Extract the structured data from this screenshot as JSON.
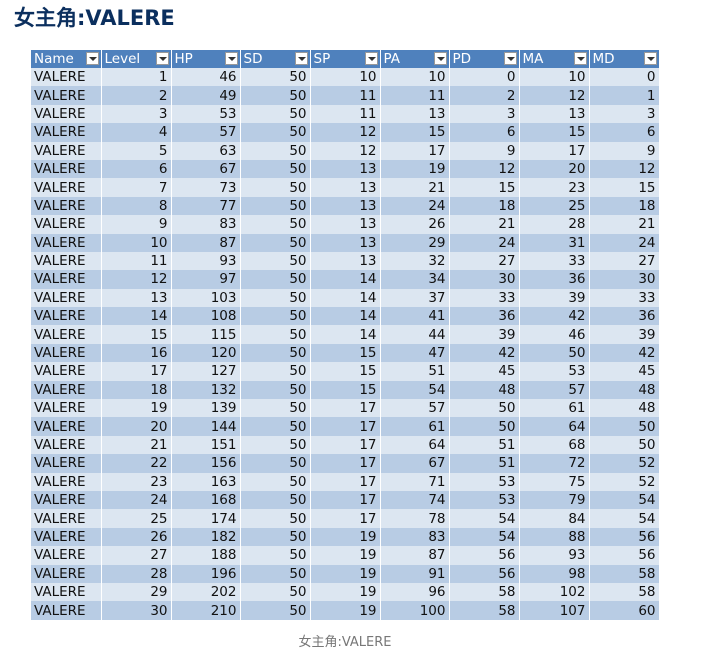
{
  "title": "女主角:VALERE",
  "table": {
    "columns": [
      "Name",
      "Level",
      "HP",
      "SD",
      "SP",
      "PA",
      "PD",
      "MA",
      "MD"
    ],
    "rows": [
      [
        "VALERE",
        1,
        46,
        50,
        10,
        10,
        0,
        10,
        0
      ],
      [
        "VALERE",
        2,
        49,
        50,
        11,
        11,
        2,
        12,
        1
      ],
      [
        "VALERE",
        3,
        53,
        50,
        11,
        13,
        3,
        13,
        3
      ],
      [
        "VALERE",
        4,
        57,
        50,
        12,
        15,
        6,
        15,
        6
      ],
      [
        "VALERE",
        5,
        63,
        50,
        12,
        17,
        9,
        17,
        9
      ],
      [
        "VALERE",
        6,
        67,
        50,
        13,
        19,
        12,
        20,
        12
      ],
      [
        "VALERE",
        7,
        73,
        50,
        13,
        21,
        15,
        23,
        15
      ],
      [
        "VALERE",
        8,
        77,
        50,
        13,
        24,
        18,
        25,
        18
      ],
      [
        "VALERE",
        9,
        83,
        50,
        13,
        26,
        21,
        28,
        21
      ],
      [
        "VALERE",
        10,
        87,
        50,
        13,
        29,
        24,
        31,
        24
      ],
      [
        "VALERE",
        11,
        93,
        50,
        13,
        32,
        27,
        33,
        27
      ],
      [
        "VALERE",
        12,
        97,
        50,
        14,
        34,
        30,
        36,
        30
      ],
      [
        "VALERE",
        13,
        103,
        50,
        14,
        37,
        33,
        39,
        33
      ],
      [
        "VALERE",
        14,
        108,
        50,
        14,
        41,
        36,
        42,
        36
      ],
      [
        "VALERE",
        15,
        115,
        50,
        14,
        44,
        39,
        46,
        39
      ],
      [
        "VALERE",
        16,
        120,
        50,
        15,
        47,
        42,
        50,
        42
      ],
      [
        "VALERE",
        17,
        127,
        50,
        15,
        51,
        45,
        53,
        45
      ],
      [
        "VALERE",
        18,
        132,
        50,
        15,
        54,
        48,
        57,
        48
      ],
      [
        "VALERE",
        19,
        139,
        50,
        17,
        57,
        50,
        61,
        48
      ],
      [
        "VALERE",
        20,
        144,
        50,
        17,
        61,
        50,
        64,
        50
      ],
      [
        "VALERE",
        21,
        151,
        50,
        17,
        64,
        51,
        68,
        50
      ],
      [
        "VALERE",
        22,
        156,
        50,
        17,
        67,
        51,
        72,
        52
      ],
      [
        "VALERE",
        23,
        163,
        50,
        17,
        71,
        53,
        75,
        52
      ],
      [
        "VALERE",
        24,
        168,
        50,
        17,
        74,
        53,
        79,
        54
      ],
      [
        "VALERE",
        25,
        174,
        50,
        17,
        78,
        54,
        84,
        54
      ],
      [
        "VALERE",
        26,
        182,
        50,
        19,
        83,
        54,
        88,
        56
      ],
      [
        "VALERE",
        27,
        188,
        50,
        19,
        87,
        56,
        93,
        56
      ],
      [
        "VALERE",
        28,
        196,
        50,
        19,
        91,
        56,
        98,
        58
      ],
      [
        "VALERE",
        29,
        202,
        50,
        19,
        96,
        58,
        102,
        58
      ],
      [
        "VALERE",
        30,
        210,
        50,
        19,
        100,
        58,
        107,
        60
      ]
    ]
  },
  "caption": "女主角:VALERE"
}
